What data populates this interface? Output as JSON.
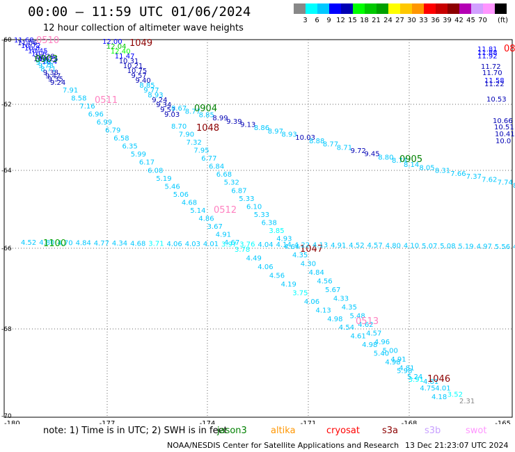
{
  "header": {
    "title": "00:00 — 11:59 UTC 01/06/2024",
    "subtitle": "12 hour collection of altimeter wave heights"
  },
  "scale": {
    "colors": [
      "#888888",
      "#00ffff",
      "#00c8ff",
      "#0000ff",
      "#0000b4",
      "#00ff00",
      "#00c800",
      "#00a000",
      "#ffff00",
      "#ffc800",
      "#ff9600",
      "#ff0000",
      "#c80000",
      "#8c0000",
      "#b400b4",
      "#d2a0ff",
      "#ff96ff",
      "#000000"
    ],
    "labels": [
      "3",
      "6",
      "9",
      "12",
      "15",
      "18",
      "21",
      "24",
      "27",
      "30",
      "33",
      "36",
      "39",
      "42",
      "45",
      "70"
    ],
    "unit": "(ft)"
  },
  "axes": {
    "lat_ticks": [
      "-60",
      "-62",
      "-64",
      "-66",
      "-68",
      "-70"
    ],
    "lon_ticks": [
      "-180",
      "-177",
      "-174",
      "-171",
      "-168",
      "-165"
    ]
  },
  "tracks": [
    {
      "id": "0510",
      "color": "#ff80c0",
      "label_color": "#ff80c0",
      "points": [
        [
          "11.68",
          "#0000ff"
        ],
        [
          "11.06",
          "#0000b4"
        ],
        [
          "10.72",
          "#0000ff"
        ],
        [
          "10.8",
          "#0000ff"
        ],
        [
          "10.45",
          "#0000ff"
        ],
        [
          "10.6",
          "#0000ff"
        ],
        [
          "10.38",
          "#0000b4"
        ],
        [
          "10.25",
          "#0000ff"
        ],
        [
          "10.4",
          "#0000ff"
        ]
      ]
    },
    {
      "id": "0903",
      "color": "#008000",
      "label_color": "#008000",
      "points": [
        [
          "10.4",
          "#0000b4"
        ],
        [
          "9.76",
          "#00c8ff"
        ],
        [
          "9.78",
          "#00c8ff"
        ],
        [
          "8.71",
          "#00c8ff"
        ],
        [
          "9.38",
          "#0000b4"
        ],
        [
          "9.47",
          "#0000b4"
        ],
        [
          "9.35",
          "#0000b4"
        ],
        [
          "9.24",
          "#0000b4"
        ]
      ]
    },
    {
      "id": "0511",
      "color": "#ff80c0",
      "label_color": "#ff80c0",
      "points": [
        [
          "7.91",
          "#00c8ff"
        ],
        [
          "8.58",
          "#00c8ff"
        ],
        [
          "7.16",
          "#00c8ff"
        ],
        [
          "6.96",
          "#00c8ff"
        ],
        [
          "6.99",
          "#00c8ff"
        ],
        [
          "6.79",
          "#00c8ff"
        ],
        [
          "6.58",
          "#00c8ff"
        ],
        [
          "6.35",
          "#00c8ff"
        ],
        [
          "5.99",
          "#00c8ff"
        ],
        [
          "6.17",
          "#00c8ff"
        ],
        [
          "6.08",
          "#00c8ff"
        ],
        [
          "5.19",
          "#00c8ff"
        ],
        [
          "5.46",
          "#00c8ff"
        ],
        [
          "5.06",
          "#00c8ff"
        ],
        [
          "4.68",
          "#00c8ff"
        ],
        [
          "5.14",
          "#00c8ff"
        ],
        [
          "4.86",
          "#00c8ff"
        ],
        [
          "3.67",
          "#00c8ff"
        ],
        [
          "4.91",
          "#00c8ff"
        ],
        [
          "4.67",
          "#00c8ff"
        ]
      ]
    },
    {
      "id": "1049",
      "color": "#8c0000",
      "label_color": "#8c0000",
      "points": [
        [
          "12.00",
          "#0000ff"
        ],
        [
          "12.04",
          "#00c800"
        ],
        [
          "12.40",
          "#00ff00"
        ],
        [
          "11.47",
          "#0000ff"
        ],
        [
          "10.31",
          "#0000b4"
        ],
        [
          "10.21",
          "#0000b4"
        ],
        [
          "10.75",
          "#0000b4"
        ],
        [
          "9.57",
          "#0000b4"
        ],
        [
          "9.40",
          "#0000b4"
        ],
        [
          "8.85",
          "#00c8ff"
        ],
        [
          "9.77",
          "#00c8ff"
        ],
        [
          "8.93",
          "#00c8ff"
        ],
        [
          "9.24",
          "#0000b4"
        ],
        [
          "9.34",
          "#0000b4"
        ],
        [
          "9.57",
          "#0000b4"
        ],
        [
          "9.03",
          "#0000b4"
        ]
      ]
    },
    {
      "id": "0904",
      "color": "#008000",
      "label_color": "#008000",
      "points": [
        [
          "8.67",
          "#00c8ff"
        ],
        [
          "8.77",
          "#00c8ff"
        ],
        [
          "8.85",
          "#00c8ff"
        ],
        [
          "8.99",
          "#0000b4"
        ],
        [
          "9.39",
          "#0000b4"
        ],
        [
          "9.13",
          "#0000b4"
        ],
        [
          "8.86",
          "#00c8ff"
        ],
        [
          "8.97",
          "#00c8ff"
        ],
        [
          "8.93",
          "#00c8ff"
        ],
        [
          "10.03",
          "#0000b4"
        ],
        [
          "8.88",
          "#00c8ff"
        ],
        [
          "8.77",
          "#00c8ff"
        ],
        [
          "8.71",
          "#00c8ff"
        ],
        [
          "9.72",
          "#0000b4"
        ],
        [
          "9.45",
          "#0000b4"
        ],
        [
          "8.80",
          "#00c8ff"
        ],
        [
          "8.74",
          "#00c8ff"
        ]
      ]
    },
    {
      "id": "0905",
      "color": "#008000",
      "label_color": "#008000",
      "points": [
        [
          "8.14",
          "#00c8ff"
        ],
        [
          "8.05",
          "#00c8ff"
        ],
        [
          "8.31",
          "#00c8ff"
        ],
        [
          "7.66",
          "#00c8ff"
        ],
        [
          "7.37",
          "#00c8ff"
        ],
        [
          "7.62",
          "#00c8ff"
        ],
        [
          "7.74",
          "#00c8ff"
        ],
        [
          "8.0",
          "#00c8ff"
        ]
      ]
    },
    {
      "id": "1048",
      "color": "#8c0000",
      "label_color": "#8c0000",
      "points": [
        [
          "8.70",
          "#00c8ff"
        ],
        [
          "7.90",
          "#00c8ff"
        ],
        [
          "7.32",
          "#00c8ff"
        ],
        [
          "7.95",
          "#00c8ff"
        ],
        [
          "6.77",
          "#00c8ff"
        ],
        [
          "6.84",
          "#00c8ff"
        ],
        [
          "6.68",
          "#00c8ff"
        ],
        [
          "5.32",
          "#00c8ff"
        ],
        [
          "6.87",
          "#00c8ff"
        ],
        [
          "5.33",
          "#00c8ff"
        ],
        [
          "6.10",
          "#00c8ff"
        ],
        [
          "5.33",
          "#00c8ff"
        ],
        [
          "6.38",
          "#00c8ff"
        ],
        [
          "3.85",
          "#00ffff"
        ],
        [
          "4.93",
          "#00c8ff"
        ],
        [
          "4.64",
          "#00c8ff"
        ]
      ]
    },
    {
      "id": "0512",
      "color": "#ff80c0",
      "label_color": "#ff80c0",
      "points": [
        [
          "3.78",
          "#00ffff"
        ],
        [
          "4.49",
          "#00c8ff"
        ],
        [
          "4.06",
          "#00c8ff"
        ],
        [
          "4.56",
          "#00c8ff"
        ],
        [
          "4.19",
          "#00c8ff"
        ],
        [
          "3.75",
          "#00ffff"
        ],
        [
          "4.06",
          "#00c8ff"
        ],
        [
          "4.13",
          "#00c8ff"
        ],
        [
          "4.98",
          "#00c8ff"
        ],
        [
          "4.54",
          "#00c8ff"
        ],
        [
          "4.61",
          "#00c8ff"
        ],
        [
          "4.98",
          "#00c8ff"
        ],
        [
          "5.40",
          "#00c8ff"
        ],
        [
          "4.98",
          "#00c8ff"
        ],
        [
          "5.98",
          "#00c8ff"
        ],
        [
          "3.91",
          "#00ffff"
        ],
        [
          "4.75",
          "#00c8ff"
        ],
        [
          "4.18",
          "#00c8ff"
        ]
      ]
    },
    {
      "id": "1047",
      "color": "#8c0000",
      "label_color": "#8c0000",
      "points": [
        [
          "4.35",
          "#00c8ff"
        ],
        [
          "4.30",
          "#00c8ff"
        ],
        [
          "4.84",
          "#00c8ff"
        ],
        [
          "4.56",
          "#00c8ff"
        ],
        [
          "5.67",
          "#00c8ff"
        ],
        [
          "4.33",
          "#00c8ff"
        ],
        [
          "4.35",
          "#00c8ff"
        ],
        [
          "5.48",
          "#00c8ff"
        ],
        [
          "4.62",
          "#00c8ff"
        ],
        [
          "4.57",
          "#00c8ff"
        ],
        [
          "4.96",
          "#00c8ff"
        ],
        [
          "5.00",
          "#00c8ff"
        ],
        [
          "4.91",
          "#00c8ff"
        ],
        [
          "4.81",
          "#00c8ff"
        ],
        [
          "5.24",
          "#00c8ff"
        ]
      ]
    },
    {
      "id": "0513",
      "color": "#ff80c0",
      "label_color": "#ff80c0",
      "points": []
    },
    {
      "id": "1046",
      "color": "#8c0000",
      "label_color": "#8c0000",
      "points": [
        [
          "4.81",
          "#00c8ff"
        ],
        [
          "4.01",
          "#00c8ff"
        ],
        [
          "3.52",
          "#00ffff"
        ],
        [
          "2.31",
          "#888888"
        ]
      ]
    },
    {
      "id": "1100",
      "color": "#00a000",
      "label_color": "#00a000",
      "points": [
        [
          "4.52",
          "#00c8ff"
        ],
        [
          "4.80",
          "#00c8ff"
        ],
        [
          "4.70",
          "#00c8ff"
        ],
        [
          "4.84",
          "#00c8ff"
        ],
        [
          "4.77",
          "#00c8ff"
        ],
        [
          "4.34",
          "#00c8ff"
        ],
        [
          "4.68",
          "#00c8ff"
        ],
        [
          "3.71",
          "#00ffff"
        ],
        [
          "4.06",
          "#00c8ff"
        ],
        [
          "4.03",
          "#00c8ff"
        ],
        [
          "4.01",
          "#00c8ff"
        ],
        [
          "3.97",
          "#00ffff"
        ],
        [
          "3.76",
          "#00ffff"
        ],
        [
          "4.04",
          "#00c8ff"
        ],
        [
          "4.14",
          "#00c8ff"
        ],
        [
          "4.22",
          "#00c8ff"
        ],
        [
          "4.13",
          "#00c8ff"
        ],
        [
          "4.91",
          "#00c8ff"
        ],
        [
          "4.52",
          "#00c8ff"
        ],
        [
          "4.57",
          "#00c8ff"
        ],
        [
          "4.80",
          "#00c8ff"
        ],
        [
          "4.10",
          "#00c8ff"
        ],
        [
          "5.07",
          "#00c8ff"
        ],
        [
          "5.08",
          "#00c8ff"
        ],
        [
          "5.19",
          "#00c8ff"
        ],
        [
          "4.97",
          "#00c8ff"
        ],
        [
          "5.56",
          "#00c8ff"
        ],
        [
          "4.40",
          "#00c8ff"
        ]
      ]
    },
    {
      "id": "08",
      "color": "#ff0000",
      "label_color": "#ff0000",
      "points": [
        [
          "11.81",
          "#0000ff"
        ],
        [
          "11.88",
          "#0000ff"
        ],
        [
          "11.92",
          "#0000ff"
        ],
        [
          "11.72",
          "#0000b4"
        ],
        [
          "11.70",
          "#0000b4"
        ],
        [
          "11.58",
          "#0000ff"
        ],
        [
          "11.22",
          "#0000b4"
        ],
        [
          "10.53",
          "#0000b4"
        ],
        [
          "10.66",
          "#0000b4"
        ],
        [
          "10.51",
          "#0000b4"
        ],
        [
          "10.41",
          "#0000b4"
        ],
        [
          "10.0",
          "#0000b4"
        ]
      ]
    }
  ],
  "footer": {
    "note": "note: 1) Time is in UTC; 2) SWH is in feet",
    "satellites": [
      {
        "name": "jason3",
        "color": "#008000"
      },
      {
        "name": "altika",
        "color": "#ff9600"
      },
      {
        "name": "cryosat",
        "color": "#ff0000"
      },
      {
        "name": "s3a",
        "color": "#8c0000"
      },
      {
        "name": "s3b",
        "color": "#c8a0ff"
      },
      {
        "name": "swot",
        "color": "#ff96ff"
      }
    ],
    "credit": "NOAA/NESDIS Center for Satellite Applications and Research",
    "timestamp": "13 Dec 21:23:07 UTC 2024"
  }
}
